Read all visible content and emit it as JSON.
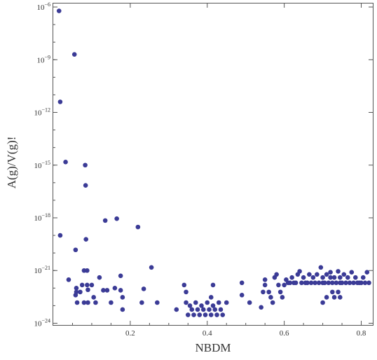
{
  "chart_data": {
    "type": "scatter",
    "title": "",
    "xlabel": "NBDM",
    "ylabel": "A(g)/V(g)!",
    "xlim": [
      0.0,
      0.83
    ],
    "ylim_log10": [
      -24.1,
      -5.8
    ],
    "yscale": "log",
    "grid": false,
    "x_ticks": [
      {
        "value": 0.2,
        "label": "0.2"
      },
      {
        "value": 0.4,
        "label": "0.4"
      },
      {
        "value": 0.6,
        "label": "0.6"
      },
      {
        "value": 0.8,
        "label": "0.8"
      }
    ],
    "y_ticks": [
      {
        "exp": -6,
        "base": "10",
        "sup": "−6"
      },
      {
        "exp": -9,
        "base": "10",
        "sup": "−9"
      },
      {
        "exp": -12,
        "base": "10",
        "sup": "−12"
      },
      {
        "exp": -15,
        "base": "10",
        "sup": "−15"
      },
      {
        "exp": -18,
        "base": "10",
        "sup": "−18"
      },
      {
        "exp": -21,
        "base": "10",
        "sup": "−21"
      },
      {
        "exp": -24,
        "base": "10",
        "sup": "−24"
      }
    ],
    "point_color": "#3b3b96",
    "points": [
      [
        0.015,
        6e-07
      ],
      [
        0.018,
        4e-12
      ],
      [
        0.018,
        1e-19
      ],
      [
        0.032,
        1.5e-15
      ],
      [
        0.04,
        3e-22
      ],
      [
        0.055,
        2e-09
      ],
      [
        0.058,
        1.5e-20
      ],
      [
        0.058,
        4e-23
      ],
      [
        0.06,
        1e-22
      ],
      [
        0.06,
        6e-23
      ],
      [
        0.062,
        1.5e-23
      ],
      [
        0.07,
        6e-23
      ],
      [
        0.075,
        1.5e-22
      ],
      [
        0.08,
        1e-21
      ],
      [
        0.08,
        1.5e-23
      ],
      [
        0.083,
        1e-15
      ],
      [
        0.084,
        7e-17
      ],
      [
        0.085,
        6e-20
      ],
      [
        0.088,
        1e-21
      ],
      [
        0.088,
        1.5e-22
      ],
      [
        0.09,
        1.5e-23
      ],
      [
        0.09,
        8e-23
      ],
      [
        0.1,
        1.5e-22
      ],
      [
        0.105,
        3e-23
      ],
      [
        0.11,
        1.5e-23
      ],
      [
        0.12,
        4e-22
      ],
      [
        0.13,
        7.5e-23
      ],
      [
        0.135,
        7e-19
      ],
      [
        0.14,
        7.5e-23
      ],
      [
        0.15,
        1.5e-23
      ],
      [
        0.16,
        1e-22
      ],
      [
        0.165,
        9e-19
      ],
      [
        0.175,
        5e-22
      ],
      [
        0.175,
        7.5e-23
      ],
      [
        0.18,
        3e-23
      ],
      [
        0.18,
        6e-24
      ],
      [
        0.22,
        3e-19
      ],
      [
        0.23,
        1.5e-23
      ],
      [
        0.235,
        9e-23
      ],
      [
        0.255,
        1.5e-21
      ],
      [
        0.27,
        1.5e-23
      ],
      [
        0.32,
        6e-24
      ],
      [
        0.34,
        1.5e-22
      ],
      [
        0.345,
        6e-23
      ],
      [
        0.345,
        1.5e-23
      ],
      [
        0.35,
        3e-24
      ],
      [
        0.355,
        1e-23
      ],
      [
        0.36,
        6e-24
      ],
      [
        0.365,
        3e-24
      ],
      [
        0.37,
        1.5e-23
      ],
      [
        0.375,
        6e-24
      ],
      [
        0.38,
        3e-24
      ],
      [
        0.385,
        1e-23
      ],
      [
        0.39,
        6e-24
      ],
      [
        0.395,
        3e-24
      ],
      [
        0.4,
        1.5e-23
      ],
      [
        0.405,
        6e-24
      ],
      [
        0.41,
        3e-23
      ],
      [
        0.41,
        3e-24
      ],
      [
        0.415,
        1.5e-22
      ],
      [
        0.415,
        1e-23
      ],
      [
        0.42,
        6e-24
      ],
      [
        0.425,
        3e-24
      ],
      [
        0.43,
        1.5e-23
      ],
      [
        0.435,
        6e-24
      ],
      [
        0.44,
        3e-24
      ],
      [
        0.45,
        1.5e-23
      ],
      [
        0.49,
        2e-22
      ],
      [
        0.49,
        4e-23
      ],
      [
        0.51,
        1.5e-23
      ],
      [
        0.54,
        8e-24
      ],
      [
        0.545,
        6e-23
      ],
      [
        0.55,
        3e-22
      ],
      [
        0.55,
        1.5e-22
      ],
      [
        0.56,
        6e-23
      ],
      [
        0.565,
        3e-23
      ],
      [
        0.57,
        1.5e-23
      ],
      [
        0.575,
        4e-22
      ],
      [
        0.58,
        6e-22
      ],
      [
        0.585,
        1.5e-22
      ],
      [
        0.59,
        6e-23
      ],
      [
        0.595,
        3e-23
      ],
      [
        0.6,
        1.5e-22
      ],
      [
        0.605,
        3e-22
      ],
      [
        0.61,
        2e-22
      ],
      [
        0.615,
        2e-22
      ],
      [
        0.62,
        4e-22
      ],
      [
        0.625,
        2e-22
      ],
      [
        0.63,
        2e-22
      ],
      [
        0.635,
        6e-22
      ],
      [
        0.64,
        9e-22
      ],
      [
        0.645,
        2e-22
      ],
      [
        0.65,
        4e-22
      ],
      [
        0.655,
        2e-22
      ],
      [
        0.66,
        2e-22
      ],
      [
        0.665,
        6e-22
      ],
      [
        0.67,
        2e-22
      ],
      [
        0.675,
        4e-22
      ],
      [
        0.68,
        2e-22
      ],
      [
        0.685,
        6e-22
      ],
      [
        0.69,
        2e-22
      ],
      [
        0.695,
        1.5e-21
      ],
      [
        0.7,
        4e-22
      ],
      [
        0.7,
        2e-22
      ],
      [
        0.7,
        1.5e-23
      ],
      [
        0.705,
        2e-22
      ],
      [
        0.71,
        3e-23
      ],
      [
        0.71,
        6e-22
      ],
      [
        0.715,
        2e-22
      ],
      [
        0.72,
        8e-22
      ],
      [
        0.72,
        4e-22
      ],
      [
        0.725,
        2e-22
      ],
      [
        0.725,
        6e-23
      ],
      [
        0.73,
        4e-22
      ],
      [
        0.73,
        3e-23
      ],
      [
        0.735,
        2e-22
      ],
      [
        0.74,
        9e-22
      ],
      [
        0.74,
        6e-23
      ],
      [
        0.745,
        4e-22
      ],
      [
        0.745,
        2e-22
      ],
      [
        0.745,
        3e-23
      ],
      [
        0.75,
        2e-22
      ],
      [
        0.755,
        6e-22
      ],
      [
        0.76,
        2e-22
      ],
      [
        0.765,
        4e-22
      ],
      [
        0.77,
        2e-22
      ],
      [
        0.775,
        8e-22
      ],
      [
        0.78,
        2e-22
      ],
      [
        0.785,
        4e-22
      ],
      [
        0.79,
        2e-22
      ],
      [
        0.795,
        2e-22
      ],
      [
        0.8,
        2e-22
      ],
      [
        0.805,
        4e-22
      ],
      [
        0.81,
        2e-22
      ],
      [
        0.815,
        8e-22
      ],
      [
        0.82,
        2e-22
      ]
    ]
  }
}
